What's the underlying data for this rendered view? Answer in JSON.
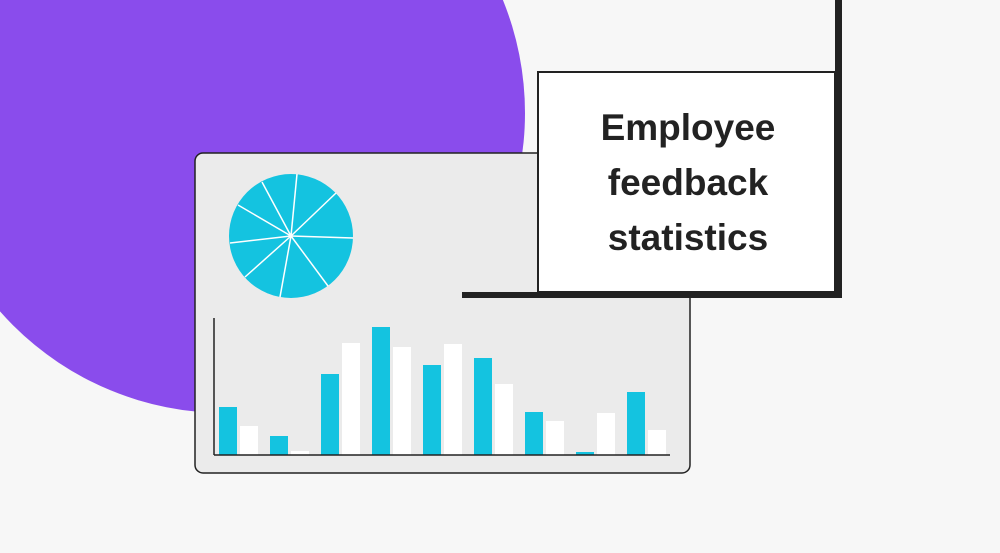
{
  "title": {
    "lines": [
      "Employee",
      "feedback",
      "statistics"
    ]
  }
}
